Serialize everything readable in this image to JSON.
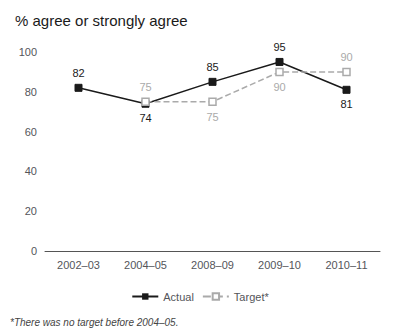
{
  "chart_data": {
    "type": "line",
    "title": "% agree or strongly agree",
    "categories": [
      "2002–03",
      "2004–05",
      "2008–09",
      "2009–10",
      "2010–11"
    ],
    "series": [
      {
        "name": "Actual",
        "color": "#1a1a1a",
        "values": [
          82,
          74,
          85,
          95,
          81
        ],
        "marker": "square",
        "line_style": "solid"
      },
      {
        "name": "Target*",
        "color": "#aaaaaa",
        "values": [
          null,
          75,
          75,
          90,
          90
        ],
        "marker": "square",
        "line_style": "dashed"
      }
    ],
    "ylim": [
      0,
      100
    ],
    "yticks": [
      0,
      20,
      40,
      60,
      80,
      100
    ],
    "grid": false,
    "legend": "bottom",
    "data_labels": true,
    "annotations": [
      "*There was no target before 2004–05."
    ]
  }
}
